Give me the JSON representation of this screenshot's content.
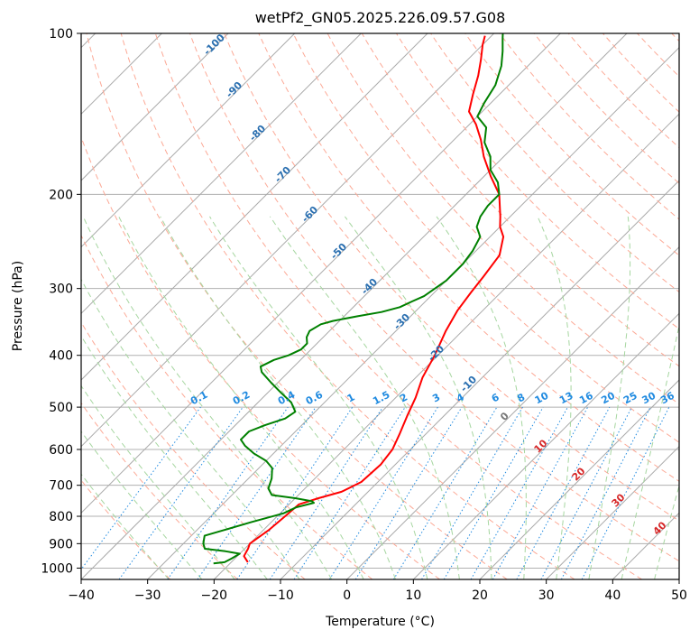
{
  "chart_data": {
    "type": "line",
    "title": "wetPf2_GN05.2025.226.09.57.G08",
    "xlabel": "Temperature (°C)",
    "ylabel": "Pressure (hPa)",
    "xlim": [
      -40,
      50
    ],
    "ylim": [
      1050,
      100
    ],
    "y_scale": "log",
    "x_ticks": [
      -40,
      -30,
      -20,
      -10,
      0,
      10,
      20,
      30,
      40,
      50
    ],
    "y_ticks": [
      100,
      200,
      300,
      400,
      500,
      600,
      700,
      800,
      900,
      1000
    ],
    "grid": true,
    "skew_degrees": 45,
    "series": [
      {
        "color": "#ff0000",
        "points": [
          [
            -17.5,
            975
          ],
          [
            -19,
            950
          ],
          [
            -19.5,
            920
          ],
          [
            -20,
            900
          ],
          [
            -19.2,
            850
          ],
          [
            -18.8,
            800
          ],
          [
            -18.5,
            760
          ],
          [
            -16.5,
            740
          ],
          [
            -14,
            720
          ],
          [
            -12.5,
            690
          ],
          [
            -12.2,
            640
          ],
          [
            -12.7,
            600
          ],
          [
            -14,
            560
          ],
          [
            -15.5,
            520
          ],
          [
            -17,
            480
          ],
          [
            -19,
            440
          ],
          [
            -20.5,
            400
          ],
          [
            -22.5,
            360
          ],
          [
            -23.8,
            330
          ],
          [
            -24.5,
            305
          ],
          [
            -25,
            285
          ],
          [
            -25.8,
            260
          ],
          [
            -28,
            240
          ],
          [
            -30,
            230
          ],
          [
            -31.5,
            220
          ],
          [
            -35,
            200
          ],
          [
            -39,
            185
          ],
          [
            -43,
            170
          ],
          [
            -46,
            158
          ],
          [
            -49,
            148
          ],
          [
            -52,
            140
          ],
          [
            -54,
            130
          ],
          [
            -56,
            120
          ],
          [
            -58,
            112
          ],
          [
            -60,
            105
          ],
          [
            -61,
            101
          ]
        ]
      },
      {
        "color": "#008000",
        "points": [
          [
            -22.5,
            980
          ],
          [
            -21,
            975
          ],
          [
            -20.5,
            960
          ],
          [
            -20,
            940
          ],
          [
            -22.5,
            930
          ],
          [
            -26,
            920
          ],
          [
            -27,
            900
          ],
          [
            -28,
            870
          ],
          [
            -26,
            850
          ],
          [
            -23,
            820
          ],
          [
            -19.5,
            790
          ],
          [
            -18.5,
            770
          ],
          [
            -16.5,
            755
          ],
          [
            -17,
            750
          ],
          [
            -20,
            740
          ],
          [
            -24,
            730
          ],
          [
            -25.5,
            710
          ],
          [
            -26.5,
            680
          ],
          [
            -28,
            650
          ],
          [
            -30,
            630
          ],
          [
            -33,
            610
          ],
          [
            -35.5,
            590
          ],
          [
            -37,
            575
          ],
          [
            -37,
            555
          ],
          [
            -35.5,
            540
          ],
          [
            -33.5,
            525
          ],
          [
            -33,
            510
          ],
          [
            -35,
            490
          ],
          [
            -38,
            470
          ],
          [
            -41,
            450
          ],
          [
            -44,
            430
          ],
          [
            -45,
            420
          ],
          [
            -44,
            408
          ],
          [
            -42.5,
            400
          ],
          [
            -41.5,
            390
          ],
          [
            -41.5,
            380
          ],
          [
            -42.5,
            370
          ],
          [
            -43,
            360
          ],
          [
            -42.3,
            350
          ],
          [
            -41,
            345
          ],
          [
            -38,
            338
          ],
          [
            -35,
            332
          ],
          [
            -33,
            325
          ],
          [
            -32,
            317
          ],
          [
            -31,
            310
          ],
          [
            -30,
            290
          ],
          [
            -30,
            270
          ],
          [
            -30.5,
            255
          ],
          [
            -31.5,
            240
          ],
          [
            -33.5,
            230
          ],
          [
            -34.5,
            220
          ],
          [
            -35,
            210
          ],
          [
            -35,
            200
          ],
          [
            -37,
            190
          ],
          [
            -40,
            180
          ],
          [
            -42,
            170
          ],
          [
            -45,
            160
          ],
          [
            -47,
            150
          ],
          [
            -50,
            143
          ],
          [
            -51,
            135
          ],
          [
            -52,
            125
          ],
          [
            -54,
            115
          ],
          [
            -56,
            108
          ],
          [
            -58,
            102
          ],
          [
            -59,
            99
          ]
        ]
      }
    ],
    "dry_adiabat_labels": [
      "-100",
      "-90",
      "-80",
      "-70",
      "-60",
      "-50",
      "-40",
      "-30",
      "-20",
      "-10",
      "0",
      "10",
      "20",
      "30",
      "40"
    ],
    "mixing_ratio_labels": [
      "0.1",
      "0.2",
      "0.4",
      "0.6",
      "1",
      "1.5",
      "2",
      "3",
      "4",
      "6",
      "8",
      "10",
      "13",
      "16",
      "20",
      "25",
      "30",
      "36"
    ]
  }
}
